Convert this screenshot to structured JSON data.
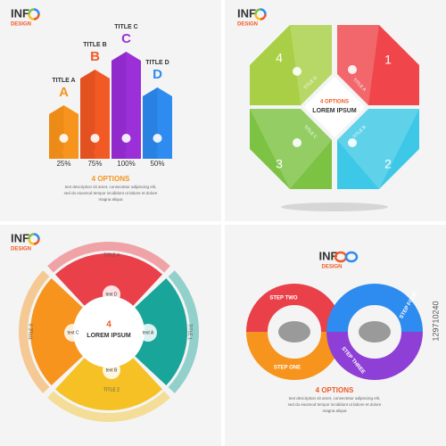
{
  "panels": [
    {
      "logo": {
        "text": "INF",
        "sub": "DESIGN"
      },
      "bars": [
        {
          "title": "TITLE A",
          "letter": "A",
          "percent": "25%"
        },
        {
          "title": "TITLE B",
          "letter": "B",
          "percent": "75%"
        },
        {
          "title": "TITLE C",
          "letter": "C",
          "percent": "100%"
        },
        {
          "title": "TITLE D",
          "letter": "D",
          "percent": "50%"
        }
      ],
      "heading": "4 OPTIONS",
      "description": [
        "text description sit amet, consectetur adipiscing elit,",
        "sed do eiusmod tempor incididunt ut labore et dolore",
        "magna aliqua"
      ]
    },
    {
      "logo": {
        "text": "INF",
        "sub": "DESIGN"
      },
      "segments": [
        {
          "number": "1",
          "title": "TITLE A"
        },
        {
          "number": "2",
          "title": "TITLE B"
        },
        {
          "number": "3",
          "title": "TITLE C"
        },
        {
          "number": "4",
          "title": "TITLE D"
        }
      ],
      "center": {
        "heading": "4 OPTIONS",
        "text": "LOREM IPSUM"
      }
    },
    {
      "logo": {
        "text": "INF",
        "sub": "DESIGN"
      },
      "segments": [
        {
          "title": "TITLE 4",
          "text": "text D"
        },
        {
          "title": "TITLE 1",
          "text": "text A"
        },
        {
          "title": "TITLE 2",
          "text": "text B"
        },
        {
          "title": "TITLE 3",
          "text": "text C"
        }
      ],
      "center": {
        "number": "4",
        "text": "LOREM IPSUM"
      }
    },
    {
      "logo": {
        "text": "INF",
        "sub": "DESIGN"
      },
      "steps": [
        "STEP ONE",
        "STEP TWO",
        "STEP THREE",
        "STEP FOUR"
      ],
      "heading": "4 OPTIONS",
      "description": [
        "text description sit amet, consectetur adipiscing elit,",
        "sed do eiusmod tempor incididunt ut labore et dolore",
        "magna aliqua"
      ]
    }
  ],
  "stock_id": "129710240"
}
